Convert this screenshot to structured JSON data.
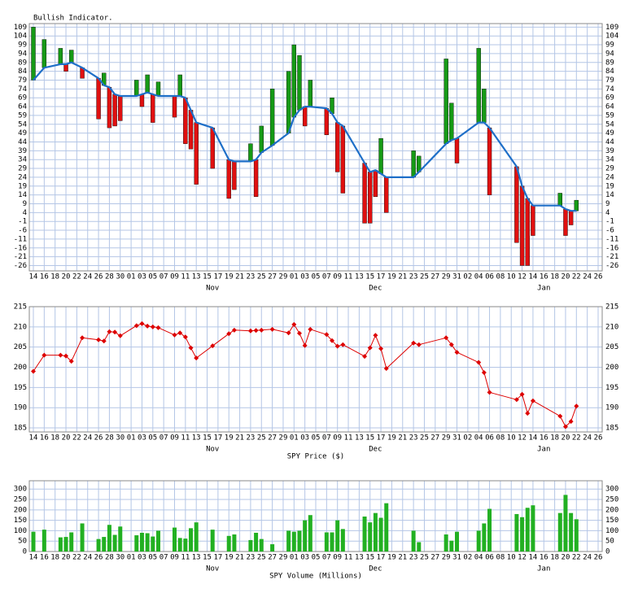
{
  "chart_data": [
    {
      "type": "floating-bar",
      "title": "Bullish Indicator.",
      "categories": [
        "14",
        null,
        "16",
        null,
        "18",
        null,
        "20",
        null,
        "22",
        null,
        "24",
        null,
        "26",
        null,
        "28",
        null,
        "30",
        null,
        "01",
        null,
        "03",
        null,
        "05",
        null,
        "07",
        null,
        "09",
        null,
        "11",
        null,
        "13",
        null,
        "15",
        null,
        "17",
        null,
        "19",
        null,
        "21",
        null,
        "23",
        null,
        "25",
        null,
        "27",
        null,
        "29",
        null,
        "01",
        null,
        "03",
        null,
        "05",
        null,
        "07",
        null,
        "09",
        null,
        "11",
        null,
        "13",
        null,
        "15",
        null,
        "17",
        null,
        "19",
        null,
        "21",
        null,
        "23",
        null,
        "25",
        null,
        "27",
        null,
        "29",
        null,
        "31",
        null,
        "02",
        null,
        "04",
        null,
        "06",
        null,
        "08",
        null,
        "10",
        null,
        "12",
        null,
        "14",
        null,
        "16",
        null,
        "18",
        null,
        "20",
        null,
        "22",
        null,
        "24",
        null,
        "26"
      ],
      "months": [
        "Nov",
        "Dec",
        "Jan"
      ],
      "series": [
        {
          "up_color": "#169a16",
          "down_color": "#e01010",
          "values": [
            109,
            null,
            102,
            null,
            null,
            97,
            84,
            96,
            null,
            80,
            null,
            null,
            57,
            83,
            52,
            53,
            56,
            null,
            null,
            79,
            64,
            82,
            55,
            78,
            null,
            null,
            58,
            82,
            43,
            40,
            20,
            null,
            null,
            29,
            null,
            null,
            12,
            17,
            null,
            null,
            43,
            13,
            53,
            null,
            74,
            null,
            null,
            84,
            99,
            93,
            53,
            79,
            null,
            null,
            48,
            69,
            27,
            15,
            null,
            null,
            null,
            -2,
            -2,
            13,
            46,
            4,
            null,
            null,
            null,
            null,
            39,
            36,
            null,
            null,
            null,
            null,
            91,
            66,
            32,
            null,
            null,
            null,
            97,
            74,
            14,
            null,
            null,
            null,
            null,
            -13,
            -26,
            -26,
            -9,
            null,
            null,
            null,
            null,
            15,
            -9,
            -3,
            11,
            null,
            null,
            null,
            null
          ]
        },
        {
          "color": "#1e6fc8",
          "values": [
            79,
            null,
            86,
            null,
            null,
            88,
            88,
            89,
            null,
            86,
            null,
            null,
            80,
            76,
            75,
            71,
            70,
            null,
            null,
            70,
            71,
            72,
            71,
            70,
            null,
            null,
            70,
            70,
            69,
            62,
            55,
            null,
            null,
            52,
            null,
            null,
            34,
            33,
            null,
            null,
            33,
            34,
            38,
            null,
            42,
            null,
            null,
            49,
            58,
            62,
            64,
            64,
            null,
            null,
            63,
            60,
            55,
            53,
            null,
            null,
            null,
            32,
            27,
            28,
            26,
            24,
            null,
            null,
            null,
            null,
            24,
            27,
            null,
            null,
            null,
            null,
            43,
            45,
            46,
            null,
            null,
            null,
            55,
            55,
            52,
            null,
            null,
            null,
            null,
            30,
            19,
            12,
            8,
            null,
            null,
            null,
            null,
            8,
            6,
            5,
            5,
            null,
            null,
            null,
            null
          ]
        }
      ],
      "ylim": [
        -29,
        111
      ],
      "yticks": [
        -26,
        -21,
        -16,
        -11,
        -6,
        -1,
        4,
        9,
        14,
        19,
        24,
        29,
        34,
        39,
        44,
        49,
        54,
        59,
        64,
        69,
        74,
        79,
        84,
        89,
        94,
        99,
        104,
        109
      ],
      "grid": true
    },
    {
      "type": "line",
      "x_label": "SPY Price ($)",
      "categories": [
        "14",
        null,
        "16",
        null,
        "18",
        null,
        "20",
        null,
        "22",
        null,
        "24",
        null,
        "26",
        null,
        "28",
        null,
        "30",
        null,
        "01",
        null,
        "03",
        null,
        "05",
        null,
        "07",
        null,
        "09",
        null,
        "11",
        null,
        "13",
        null,
        "15",
        null,
        "17",
        null,
        "19",
        null,
        "21",
        null,
        "23",
        null,
        "25",
        null,
        "27",
        null,
        "29",
        null,
        "01",
        null,
        "03",
        null,
        "05",
        null,
        "07",
        null,
        "09",
        null,
        "11",
        null,
        "13",
        null,
        "15",
        null,
        "17",
        null,
        "19",
        null,
        "21",
        null,
        "23",
        null,
        "25",
        null,
        "27",
        null,
        "29",
        null,
        "31",
        null,
        "02",
        null,
        "04",
        null,
        "06",
        null,
        "08",
        null,
        "10",
        null,
        "12",
        null,
        "14",
        null,
        "16",
        null,
        "18",
        null,
        "20",
        null,
        "22",
        null,
        "24",
        null,
        "26"
      ],
      "months": [
        "Nov",
        "Dec",
        "Jan"
      ],
      "series": [
        {
          "color": "#dd0000",
          "values": [
            199.0,
            null,
            203.0,
            null,
            null,
            203.0,
            202.8,
            201.5,
            null,
            207.3,
            null,
            null,
            206.8,
            206.5,
            208.8,
            208.7,
            207.8,
            null,
            null,
            210.3,
            210.8,
            210.2,
            210.0,
            209.8,
            null,
            null,
            208.0,
            208.5,
            207.5,
            204.8,
            202.3,
            null,
            null,
            205.3,
            null,
            null,
            208.3,
            209.2,
            null,
            null,
            209.0,
            209.1,
            209.2,
            null,
            209.4,
            null,
            null,
            208.5,
            210.6,
            208.4,
            205.4,
            209.4,
            null,
            null,
            208.1,
            206.6,
            205.2,
            205.6,
            null,
            null,
            null,
            202.7,
            204.8,
            207.9,
            204.6,
            199.7,
            null,
            null,
            null,
            null,
            206.0,
            205.6,
            null,
            null,
            null,
            null,
            207.3,
            205.6,
            203.7,
            null,
            null,
            null,
            201.2,
            198.7,
            193.8,
            null,
            null,
            null,
            null,
            192.0,
            193.3,
            188.6,
            191.7,
            null,
            null,
            null,
            null,
            187.9,
            185.3,
            186.6,
            190.4,
            null,
            null,
            null,
            null
          ]
        }
      ],
      "ylim": [
        184,
        215
      ],
      "yticks": [
        185,
        190,
        195,
        200,
        205,
        210,
        215
      ],
      "grid": true
    },
    {
      "type": "bar",
      "x_label": "SPY Volume (Millions)",
      "categories": [
        "14",
        null,
        "16",
        null,
        "18",
        null,
        "20",
        null,
        "22",
        null,
        "24",
        null,
        "26",
        null,
        "28",
        null,
        "30",
        null,
        "01",
        null,
        "03",
        null,
        "05",
        null,
        "07",
        null,
        "09",
        null,
        "11",
        null,
        "13",
        null,
        "15",
        null,
        "17",
        null,
        "19",
        null,
        "21",
        null,
        "23",
        null,
        "25",
        null,
        "27",
        null,
        "29",
        null,
        "01",
        null,
        "03",
        null,
        "05",
        null,
        "07",
        null,
        "09",
        null,
        "11",
        null,
        "13",
        null,
        "15",
        null,
        "17",
        null,
        "19",
        null,
        "21",
        null,
        "23",
        null,
        "25",
        null,
        "27",
        null,
        "29",
        null,
        "31",
        null,
        "02",
        null,
        "04",
        null,
        "06",
        null,
        "08",
        null,
        "10",
        null,
        "12",
        null,
        "14",
        null,
        "16",
        null,
        "18",
        null,
        "20",
        null,
        "22",
        null,
        "24",
        null,
        "26"
      ],
      "months": [
        "Nov",
        "Dec",
        "Jan"
      ],
      "series": [
        {
          "color": "#22b022",
          "values": [
            95,
            null,
            105,
            null,
            null,
            68,
            70,
            92,
            null,
            135,
            null,
            null,
            60,
            70,
            128,
            80,
            120,
            null,
            null,
            78,
            90,
            88,
            72,
            100,
            null,
            null,
            115,
            65,
            62,
            112,
            140,
            null,
            null,
            105,
            null,
            null,
            75,
            82,
            null,
            null,
            55,
            90,
            60,
            null,
            35,
            null,
            null,
            100,
            95,
            100,
            150,
            175,
            null,
            null,
            92,
            92,
            150,
            108,
            null,
            null,
            null,
            168,
            140,
            185,
            162,
            232,
            null,
            null,
            null,
            null,
            100,
            45,
            null,
            null,
            null,
            null,
            82,
            52,
            95,
            null,
            null,
            null,
            100,
            135,
            205,
            null,
            null,
            null,
            null,
            180,
            165,
            210,
            222,
            null,
            null,
            null,
            null,
            185,
            272,
            185,
            155,
            null,
            null,
            null,
            null
          ]
        }
      ],
      "ylim": [
        0,
        340
      ],
      "yticks": [
        0,
        50,
        100,
        150,
        200,
        250,
        300
      ],
      "grid": true
    }
  ]
}
